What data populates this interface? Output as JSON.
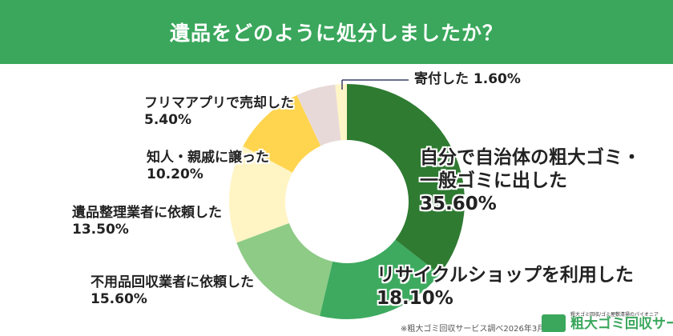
{
  "header": {
    "title": "遺品をどのように処分しましたか？"
  },
  "chart_data": {
    "type": "pie",
    "donut": true,
    "title": "遺品をどのように処分しましたか？",
    "categories": [
      "自分で自治体の粗大ゴミ・一般ゴミに出した",
      "リサイクルショップを利用した",
      "不用品回収業者に依頼した",
      "遺品整理業者に依頼した",
      "知人・親戚に譲った",
      "フリマアプリで売却した",
      "寄付した"
    ],
    "values": [
      35.6,
      18.1,
      15.6,
      13.5,
      10.2,
      5.4,
      1.6
    ],
    "labels": [
      "35.60%",
      "18.10%",
      "15.60%",
      "13.50%",
      "10.20%",
      "5.40%",
      "1.60%"
    ],
    "colors": [
      "#2e7b31",
      "#3daa5f",
      "#8dcb86",
      "#fff4c4",
      "#ffd54f",
      "#e8d9d9",
      "#fff5c6"
    ],
    "start": "12 o'clock, clockwise"
  },
  "label_lines": [
    [
      "自分で自治体の粗大ゴミ・",
      "一般ゴミに出した"
    ],
    [
      "リサイクルショップを利用した"
    ],
    [
      "不用品回収業者に依頼した"
    ],
    [
      "遺品整理業者に依頼した"
    ],
    [
      "知人・親戚に譲った"
    ],
    [
      "フリマアプリで売却した"
    ],
    [
      "寄付した"
    ]
  ],
  "footer": {
    "note": "※粗大ゴミ回収サービス調べ2026年3月",
    "logo_tagline": "粗大ゴミ回収/ゴミ屋敷清掃のパイオニア",
    "logo_name": "粗大ゴミ回収サービス"
  }
}
